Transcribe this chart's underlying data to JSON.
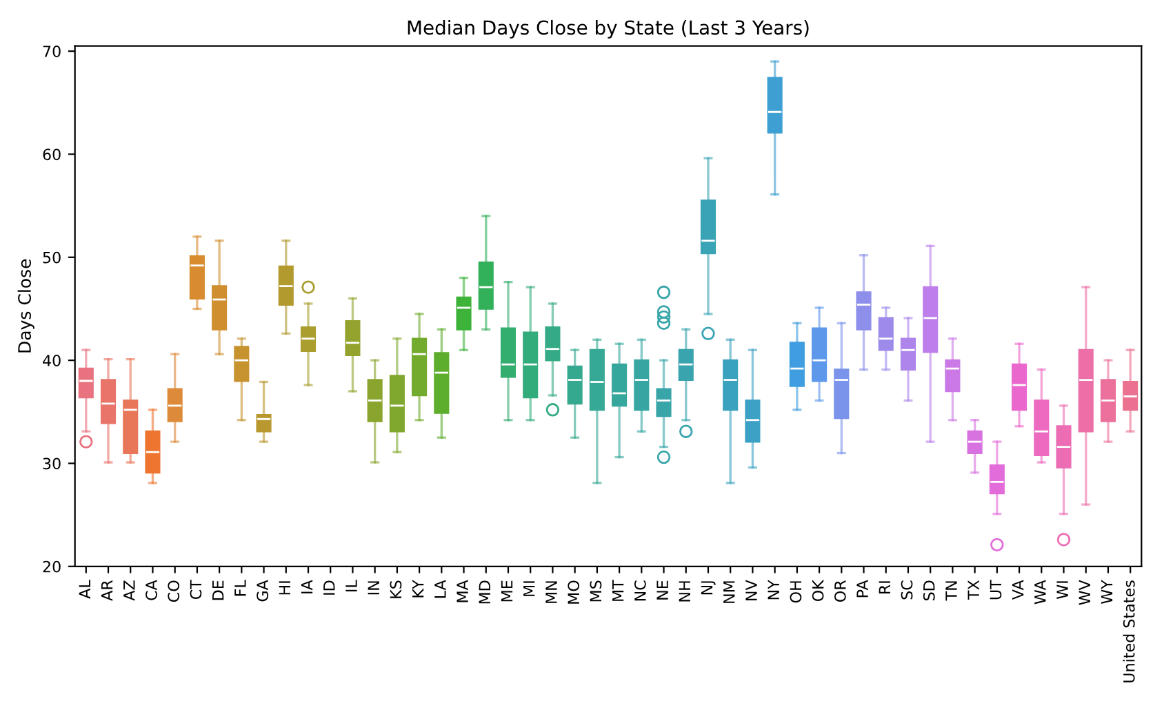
{
  "chart_data": {
    "type": "box",
    "title": "Median Days Close by State (Last 3 Years)",
    "ylabel": "Days Close",
    "categories": [
      "AL",
      "AR",
      "AZ",
      "CA",
      "CO",
      "CT",
      "DE",
      "FL",
      "GA",
      "HI",
      "IA",
      "ID",
      "IL",
      "IN",
      "KS",
      "KY",
      "LA",
      "MA",
      "MD",
      "ME",
      "MI",
      "MN",
      "MO",
      "MS",
      "MT",
      "NC",
      "NE",
      "NH",
      "NJ",
      "NM",
      "NV",
      "NY",
      "OH",
      "OK",
      "OR",
      "PA",
      "RI",
      "SC",
      "SD",
      "TN",
      "TX",
      "UT",
      "VA",
      "WA",
      "WI",
      "WV",
      "WY",
      "United States"
    ],
    "ylim": [
      20,
      70.5
    ],
    "yticks": [
      20,
      30,
      40,
      50,
      60,
      70
    ],
    "grid": false,
    "colors": [
      "#e8727f",
      "#e9746a",
      "#e8775a",
      "#ee7530",
      "#dd8b3a",
      "#d98c2f",
      "#cf8f2f",
      "#c6932f",
      "#b8982f",
      "#b39a2e",
      "#a99e2e",
      "#9fa12e",
      "#94a32e",
      "#8aa52e",
      "#80a82e",
      "#72ab2e",
      "#5eae2e",
      "#3db33a",
      "#32b05a",
      "#33ae6e",
      "#33ac7b",
      "#34aa86",
      "#35a98f",
      "#36a896",
      "#36a79c",
      "#37a6a2",
      "#38a5a8",
      "#39a4ae",
      "#3aa3b5",
      "#3ba2bd",
      "#3da1c6",
      "#3e9fd2",
      "#3f9de0",
      "#5d98eb",
      "#7a93eb",
      "#8e8eeb",
      "#9e8aeb",
      "#ad85eb",
      "#bc7feb",
      "#ca79e6",
      "#d772e0",
      "#e26cd9",
      "#ea68cd",
      "#ec6bc0",
      "#ec6db4",
      "#ec6fa8",
      "#eb709c",
      "#ea7290"
    ],
    "boxes": [
      {
        "low": 33.1,
        "q1": 36.4,
        "median": 38.0,
        "q3": 39.2,
        "high": 41.0,
        "outliers": [
          32.1
        ]
      },
      {
        "low": 30.1,
        "q1": 33.9,
        "median": 35.8,
        "q3": 38.1,
        "high": 40.1
      },
      {
        "low": 30.1,
        "q1": 31.0,
        "median": 35.2,
        "q3": 36.1,
        "high": 40.1
      },
      {
        "low": 28.1,
        "q1": 29.1,
        "median": 31.1,
        "q3": 33.1,
        "high": 35.2
      },
      {
        "low": 32.1,
        "q1": 34.1,
        "median": 35.6,
        "q3": 37.2,
        "high": 40.6
      },
      {
        "low": 45.0,
        "q1": 46.0,
        "median": 49.2,
        "q3": 50.1,
        "high": 52.0
      },
      {
        "low": 40.6,
        "q1": 43.0,
        "median": 45.9,
        "q3": 47.2,
        "high": 51.6
      },
      {
        "low": 34.2,
        "q1": 38.0,
        "median": 40.0,
        "q3": 41.3,
        "high": 42.1
      },
      {
        "low": 32.1,
        "q1": 33.1,
        "median": 34.3,
        "q3": 34.7,
        "high": 37.9
      },
      {
        "low": 42.6,
        "q1": 45.4,
        "median": 47.2,
        "q3": 49.1,
        "high": 51.6
      },
      {
        "low": 37.6,
        "q1": 40.9,
        "median": 42.1,
        "q3": 43.2,
        "high": 45.5,
        "outliers": [
          47.1
        ]
      },
      null,
      {
        "low": 37.0,
        "q1": 40.5,
        "median": 41.7,
        "q3": 43.8,
        "high": 46.0
      },
      {
        "low": 30.1,
        "q1": 34.1,
        "median": 36.1,
        "q3": 38.1,
        "high": 40.0
      },
      {
        "low": 31.1,
        "q1": 33.1,
        "median": 35.6,
        "q3": 38.5,
        "high": 42.1
      },
      {
        "low": 34.2,
        "q1": 36.6,
        "median": 40.6,
        "q3": 42.1,
        "high": 44.5
      },
      {
        "low": 32.5,
        "q1": 34.9,
        "median": 38.8,
        "q3": 40.7,
        "high": 43.0
      },
      {
        "low": 41.0,
        "q1": 43.0,
        "median": 45.1,
        "q3": 46.1,
        "high": 48.0
      },
      {
        "low": 43.0,
        "q1": 45.0,
        "median": 47.1,
        "q3": 49.5,
        "high": 54.0
      },
      {
        "low": 34.2,
        "q1": 38.4,
        "median": 39.6,
        "q3": 43.1,
        "high": 47.6
      },
      {
        "low": 34.2,
        "q1": 36.4,
        "median": 39.6,
        "q3": 42.7,
        "high": 47.1
      },
      {
        "low": 36.6,
        "q1": 40.0,
        "median": 41.1,
        "q3": 43.2,
        "high": 45.5,
        "outliers": [
          35.2
        ]
      },
      {
        "low": 32.5,
        "q1": 35.8,
        "median": 38.1,
        "q3": 39.4,
        "high": 41.0
      },
      {
        "low": 28.1,
        "q1": 35.2,
        "median": 37.9,
        "q3": 41.0,
        "high": 42.0
      },
      {
        "low": 30.6,
        "q1": 35.6,
        "median": 36.8,
        "q3": 39.6,
        "high": 41.6
      },
      {
        "low": 33.1,
        "q1": 35.2,
        "median": 38.1,
        "q3": 40.0,
        "high": 42.0
      },
      {
        "low": 31.6,
        "q1": 34.6,
        "median": 36.1,
        "q3": 37.2,
        "high": 40.0,
        "outliers": [
          46.6,
          44.7,
          44.2,
          43.6,
          30.6
        ]
      },
      {
        "low": 34.2,
        "q1": 38.1,
        "median": 39.6,
        "q3": 41.0,
        "high": 43.0,
        "outliers": [
          33.1
        ]
      },
      {
        "low": 44.5,
        "q1": 50.4,
        "median": 51.6,
        "q3": 55.5,
        "high": 59.6,
        "outliers": [
          42.6
        ]
      },
      {
        "low": 28.1,
        "q1": 35.2,
        "median": 38.1,
        "q3": 40.0,
        "high": 42.0
      },
      {
        "low": 29.6,
        "q1": 32.1,
        "median": 34.2,
        "q3": 36.1,
        "high": 41.0
      },
      {
        "low": 56.1,
        "q1": 62.1,
        "median": 64.1,
        "q3": 67.4,
        "high": 69.0
      },
      {
        "low": 35.2,
        "q1": 37.5,
        "median": 39.2,
        "q3": 41.7,
        "high": 43.6
      },
      {
        "low": 36.1,
        "q1": 38.0,
        "median": 40.0,
        "q3": 43.1,
        "high": 45.1
      },
      {
        "low": 31.0,
        "q1": 34.4,
        "median": 38.1,
        "q3": 39.1,
        "high": 43.6
      },
      {
        "low": 39.1,
        "q1": 43.0,
        "median": 45.4,
        "q3": 46.6,
        "high": 50.2
      },
      {
        "low": 39.1,
        "q1": 41.0,
        "median": 42.1,
        "q3": 44.1,
        "high": 45.1
      },
      {
        "low": 36.1,
        "q1": 39.1,
        "median": 41.0,
        "q3": 42.1,
        "high": 44.1
      },
      {
        "low": 32.1,
        "q1": 40.8,
        "median": 44.1,
        "q3": 47.1,
        "high": 51.1
      },
      {
        "low": 34.2,
        "q1": 37.0,
        "median": 39.2,
        "q3": 40.0,
        "high": 42.1
      },
      {
        "low": 29.1,
        "q1": 31.0,
        "median": 32.1,
        "q3": 33.1,
        "high": 34.2
      },
      {
        "low": 25.1,
        "q1": 27.1,
        "median": 28.2,
        "q3": 29.8,
        "high": 32.1,
        "outliers": [
          22.1
        ]
      },
      {
        "low": 33.6,
        "q1": 35.2,
        "median": 37.6,
        "q3": 39.6,
        "high": 41.6
      },
      {
        "low": 30.1,
        "q1": 30.8,
        "median": 33.1,
        "q3": 36.1,
        "high": 39.1
      },
      {
        "low": 25.1,
        "q1": 29.6,
        "median": 31.6,
        "q3": 33.6,
        "high": 35.6,
        "outliers": [
          22.6
        ]
      },
      {
        "low": 26.0,
        "q1": 33.1,
        "median": 38.1,
        "q3": 41.0,
        "high": 47.1
      },
      {
        "low": 32.1,
        "q1": 34.1,
        "median": 36.1,
        "q3": 38.1,
        "high": 40.0
      },
      {
        "low": 33.1,
        "q1": 35.2,
        "median": 36.5,
        "q3": 37.9,
        "high": 41.0
      }
    ]
  }
}
